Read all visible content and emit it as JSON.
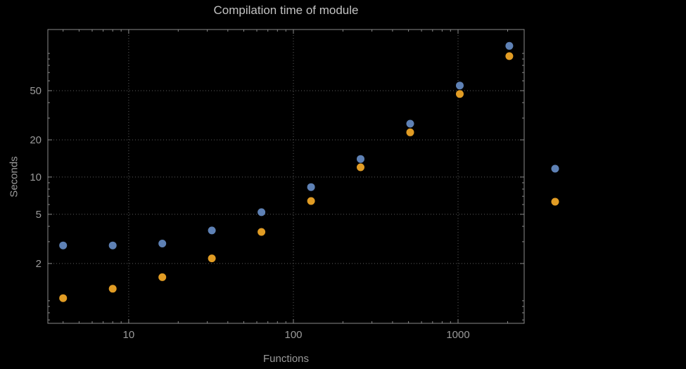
{
  "chart_data": {
    "type": "scatter",
    "title": "Compilation time of module",
    "xlabel": "Functions",
    "ylabel": "Seconds",
    "x_scale": "log",
    "y_scale": "log",
    "x": [
      4,
      8,
      16,
      32,
      64,
      128,
      256,
      512,
      1024,
      2048
    ],
    "series": [
      {
        "name": "blue",
        "color": "#5E81B5",
        "values": [
          2.8,
          2.8,
          2.9,
          3.7,
          5.2,
          8.3,
          14,
          27,
          55,
          115
        ]
      },
      {
        "name": "orange",
        "color": "#E19C24",
        "values": [
          1.05,
          1.25,
          1.55,
          2.2,
          3.6,
          6.4,
          12,
          23,
          47,
          95
        ]
      }
    ],
    "x_ticks": [
      10,
      100,
      1000
    ],
    "y_ticks": [
      2,
      5,
      10,
      20,
      50
    ],
    "x_range": [
      3.23,
      2520
    ],
    "y_range": [
      0.657,
      156
    ],
    "grid": true,
    "legend_markers": [
      "#5E81B5",
      "#E19C24"
    ]
  },
  "colors": {
    "background": "#000000",
    "frame": "#8a8a8a",
    "grid": "#5e5e5e",
    "text": "#9a9a9a",
    "title": "#c2c2c2"
  }
}
